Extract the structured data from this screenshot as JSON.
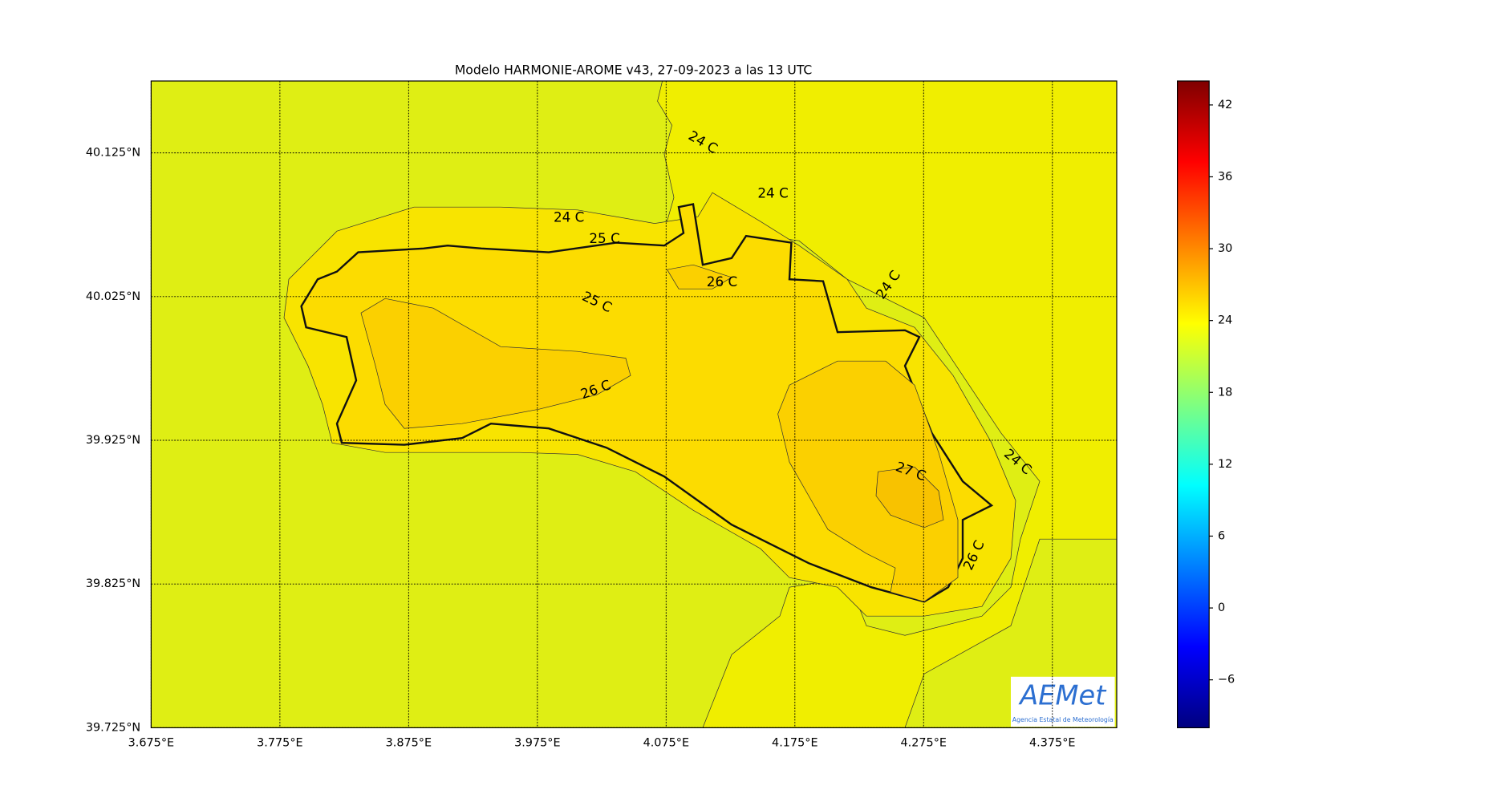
{
  "chart_data": {
    "type": "contour-map",
    "title": "Modelo HARMONIE-AROME v43, 27-09-2023 a las 13 UTC",
    "xlim": [
      3.675,
      4.425
    ],
    "ylim": [
      39.725,
      40.175
    ],
    "xticks": [
      {
        "value": 3.675,
        "label": "3.675°E"
      },
      {
        "value": 3.775,
        "label": "3.775°E"
      },
      {
        "value": 3.875,
        "label": "3.875°E"
      },
      {
        "value": 3.975,
        "label": "3.975°E"
      },
      {
        "value": 4.075,
        "label": "4.075°E"
      },
      {
        "value": 4.175,
        "label": "4.175°E"
      },
      {
        "value": 4.275,
        "label": "4.275°E"
      },
      {
        "value": 4.375,
        "label": "4.375°E"
      }
    ],
    "yticks": [
      {
        "value": 39.725,
        "label": "39.725°N"
      },
      {
        "value": 39.825,
        "label": "39.825°N"
      },
      {
        "value": 39.925,
        "label": "39.925°N"
      },
      {
        "value": 40.025,
        "label": "40.025°N"
      },
      {
        "value": 40.125,
        "label": "40.125°N"
      }
    ],
    "grid": true,
    "colorbar": {
      "lim": [
        -10,
        44
      ],
      "ticks": [
        {
          "value": -6,
          "label": "−6"
        },
        0,
        6,
        12,
        18,
        24,
        30,
        36,
        42
      ]
    },
    "contour_labels": [
      "24 C",
      "25 C",
      "24 C",
      "24 C",
      "26 C",
      "25 C",
      "24 C",
      "26 C",
      "27 C",
      "24 C",
      "26 C"
    ],
    "logo": {
      "name": "AEMet",
      "subtitle": "Agencia Estatal de Meteorología"
    }
  }
}
